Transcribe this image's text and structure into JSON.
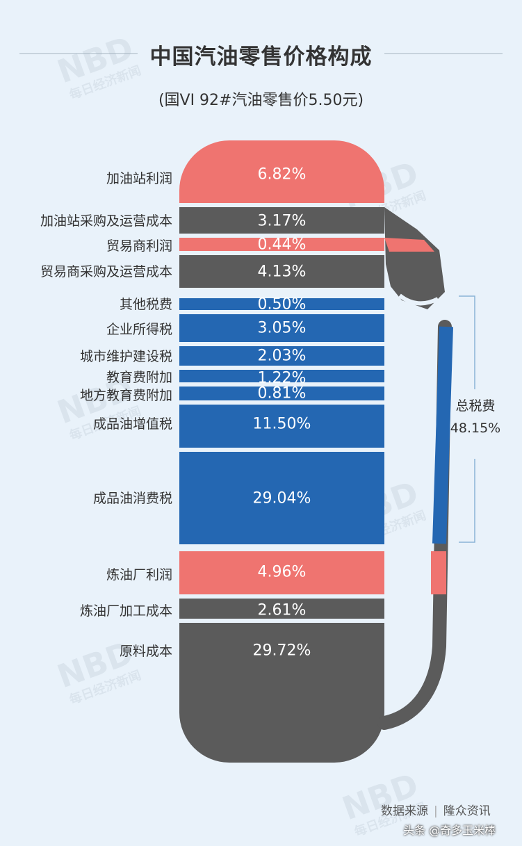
{
  "chart_data": {
    "type": "bar",
    "title": "中国汽油零售价格构成",
    "subtitle": "(国VI 92#汽油零售价5.50元)",
    "categories": [
      "加油站利润",
      "加油站采购及运营成本",
      "贸易商利润",
      "贸易商采购及运营成本",
      "其他税费",
      "企业所得税",
      "城市维护建设税",
      "教育费附加",
      "地方教育费附加",
      "成品油增值税",
      "成品油消费税",
      "炼油厂利润",
      "炼油厂加工成本",
      "原料成本"
    ],
    "values": [
      6.82,
      3.17,
      0.44,
      4.13,
      0.5,
      3.05,
      2.03,
      1.22,
      0.81,
      11.5,
      29.04,
      4.96,
      2.61,
      29.72
    ],
    "value_labels": [
      "6.82%",
      "3.17%",
      "0.44%",
      "4.13%",
      "0.50%",
      "3.05%",
      "2.03%",
      "1.22%",
      "0.81%",
      "11.50%",
      "29.04%",
      "4.96%",
      "2.61%",
      "29.72%"
    ],
    "groups": [
      "profit",
      "cost",
      "profit",
      "cost",
      "tax",
      "tax",
      "tax",
      "tax",
      "tax",
      "tax",
      "tax",
      "profit",
      "cost",
      "cost"
    ],
    "colors": {
      "profit": "#ef7470",
      "cost": "#5b5b5b",
      "tax": "#2467b2"
    },
    "annotation": {
      "label": "总税费",
      "value": "48.15%"
    }
  },
  "footer": {
    "source_label": "数据来源",
    "separator": "|",
    "source": "隆众资讯",
    "watermark": "头条 @奇多玉米棒"
  },
  "watermark_text": {
    "logo": "NBD",
    "cn": "每日经济新闻"
  }
}
